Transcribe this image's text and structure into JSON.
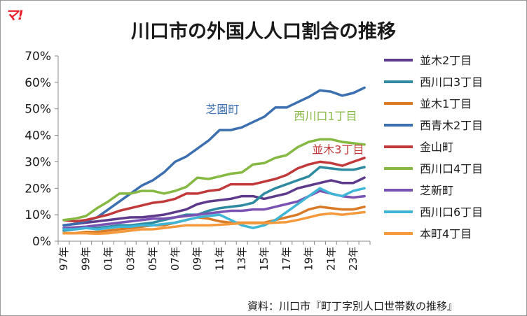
{
  "logo_text": "マ!",
  "source": "資料：川口市『町丁字別人口世帯数の推移』",
  "colors": {
    "namiki2": "#5e3a8c",
    "nishikawaguchi3": "#2e8aa0",
    "namiki1": "#d97a27",
    "nishiaoki2": "#3c6fb0",
    "kanayama": "#c0393b",
    "nishikawaguchi4": "#86b943",
    "shibashin": "#7a52b3",
    "nishikawaguchi6": "#3fb6d6",
    "honcho4": "#f59a3c"
  },
  "chart_data": {
    "type": "line",
    "title": "川口市の外国人人口割合の推移",
    "ylim": [
      0,
      0.7
    ],
    "yticks": [
      "0%",
      "10%",
      "20%",
      "30%",
      "40%",
      "50%",
      "60%",
      "70%"
    ],
    "x": [
      "1997",
      "1998",
      "1999",
      "2000",
      "2001",
      "2002",
      "2003",
      "2004",
      "2005",
      "2006",
      "2007",
      "2008",
      "2009",
      "2010",
      "2011",
      "2012",
      "2013",
      "2014",
      "2015",
      "2016",
      "2017",
      "2018",
      "2019",
      "2020",
      "2021",
      "2022",
      "2023",
      "2024"
    ],
    "xtick_labels": [
      "97年",
      "99年",
      "01年",
      "03年",
      "05年",
      "07年",
      "09年",
      "11年",
      "13年",
      "15年",
      "17年",
      "19年",
      "21年",
      "23年"
    ],
    "grid": false,
    "legend": "right",
    "series": [
      {
        "name": "並木2丁目",
        "color_key": "namiki2",
        "values": [
          0.06,
          0.065,
          0.07,
          0.075,
          0.08,
          0.085,
          0.09,
          0.09,
          0.095,
          0.1,
          0.11,
          0.12,
          0.14,
          0.15,
          0.155,
          0.16,
          0.17,
          0.17,
          0.16,
          0.17,
          0.18,
          0.2,
          0.21,
          0.22,
          0.23,
          0.22,
          0.22,
          0.24
        ]
      },
      {
        "name": "西川口3丁目",
        "color_key": "nishikawaguchi3",
        "values": [
          0.04,
          0.045,
          0.05,
          0.05,
          0.055,
          0.06,
          0.06,
          0.065,
          0.07,
          0.08,
          0.09,
          0.1,
          0.1,
          0.115,
          0.125,
          0.13,
          0.135,
          0.145,
          0.18,
          0.2,
          0.215,
          0.23,
          0.245,
          0.28,
          0.275,
          0.27,
          0.27,
          0.28
        ]
      },
      {
        "name": "並木1丁目",
        "color_key": "namiki1",
        "values": [
          0.03,
          0.03,
          0.035,
          0.035,
          0.04,
          0.045,
          0.05,
          0.055,
          0.06,
          0.06,
          0.07,
          0.08,
          0.09,
          0.085,
          0.075,
          0.07,
          0.07,
          0.07,
          0.07,
          0.08,
          0.09,
          0.1,
          0.12,
          0.13,
          0.125,
          0.12,
          0.12,
          0.13
        ]
      },
      {
        "name": "西青木2丁目",
        "color_key": "nishiaoki2",
        "values": [
          0.06,
          0.065,
          0.075,
          0.09,
          0.12,
          0.15,
          0.18,
          0.21,
          0.23,
          0.26,
          0.3,
          0.32,
          0.35,
          0.38,
          0.42,
          0.42,
          0.43,
          0.45,
          0.47,
          0.505,
          0.505,
          0.525,
          0.545,
          0.57,
          0.565,
          0.55,
          0.56,
          0.58
        ]
      },
      {
        "name": "金山町",
        "color_key": "kanayama",
        "values": [
          0.08,
          0.075,
          0.08,
          0.09,
          0.1,
          0.115,
          0.125,
          0.135,
          0.145,
          0.15,
          0.16,
          0.18,
          0.18,
          0.19,
          0.195,
          0.215,
          0.215,
          0.215,
          0.225,
          0.235,
          0.25,
          0.275,
          0.29,
          0.3,
          0.295,
          0.285,
          0.3,
          0.315
        ]
      },
      {
        "name": "西川口4丁目",
        "color_key": "nishikawaguchi4",
        "values": [
          0.08,
          0.085,
          0.095,
          0.125,
          0.15,
          0.18,
          0.18,
          0.19,
          0.19,
          0.18,
          0.19,
          0.205,
          0.24,
          0.235,
          0.245,
          0.255,
          0.26,
          0.29,
          0.295,
          0.315,
          0.325,
          0.355,
          0.375,
          0.385,
          0.385,
          0.375,
          0.37,
          0.365
        ]
      },
      {
        "name": "芝新町",
        "color_key": "shibashin",
        "values": [
          0.05,
          0.052,
          0.055,
          0.06,
          0.065,
          0.07,
          0.075,
          0.08,
          0.085,
          0.085,
          0.09,
          0.095,
          0.1,
          0.105,
          0.11,
          0.115,
          0.115,
          0.12,
          0.12,
          0.13,
          0.14,
          0.15,
          0.17,
          0.19,
          0.18,
          0.17,
          0.165,
          0.17
        ]
      },
      {
        "name": "西川口6丁目",
        "color_key": "nishikawaguchi6",
        "values": [
          0.045,
          0.045,
          0.05,
          0.045,
          0.05,
          0.055,
          0.055,
          0.06,
          0.06,
          0.065,
          0.07,
          0.08,
          0.09,
          0.095,
          0.1,
          0.08,
          0.06,
          0.05,
          0.06,
          0.08,
          0.11,
          0.14,
          0.17,
          0.2,
          0.18,
          0.17,
          0.19,
          0.2
        ]
      },
      {
        "name": "本町4丁目",
        "color_key": "honcho4",
        "values": [
          0.03,
          0.03,
          0.03,
          0.028,
          0.03,
          0.035,
          0.04,
          0.045,
          0.045,
          0.05,
          0.055,
          0.06,
          0.06,
          0.06,
          0.062,
          0.065,
          0.068,
          0.068,
          0.068,
          0.07,
          0.072,
          0.08,
          0.09,
          0.1,
          0.105,
          0.1,
          0.105,
          0.11
        ]
      }
    ],
    "annotations": [
      {
        "text": "芝園町",
        "series": "西青木2丁目",
        "at": "2012"
      },
      {
        "text": "西川口1丁目",
        "series": "西川口4丁目",
        "at": "2020"
      },
      {
        "text": "並木3丁目",
        "series": "金山町",
        "at": "2021"
      }
    ]
  }
}
